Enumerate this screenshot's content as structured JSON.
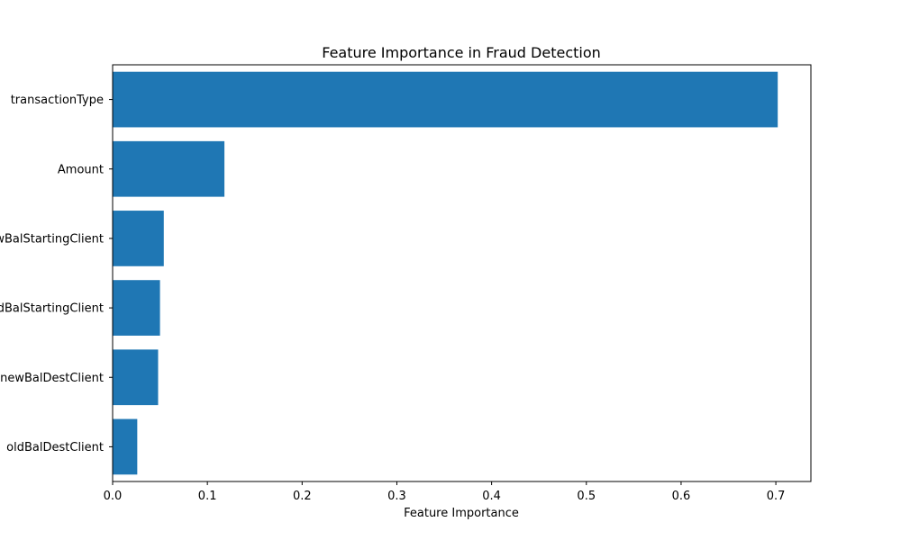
{
  "chart_data": {
    "type": "bar",
    "orientation": "horizontal",
    "title": "Feature Importance in Fraud Detection",
    "xlabel": "Feature Importance",
    "ylabel": "",
    "categories": [
      "transactionType",
      "Amount",
      "newBalStartingClient",
      "oldBalStartingClient",
      "newBalDestClient",
      "oldBalDestClient"
    ],
    "values": [
      0.702,
      0.118,
      0.054,
      0.05,
      0.048,
      0.026
    ],
    "xlim": [
      0,
      0.737
    ],
    "xticks": [
      0.0,
      0.1,
      0.2,
      0.3,
      0.4,
      0.5,
      0.6,
      0.7
    ],
    "xtick_labels": [
      "0.0",
      "0.1",
      "0.2",
      "0.3",
      "0.4",
      "0.5",
      "0.6",
      "0.7"
    ],
    "bar_color": "#1f77b4",
    "grid": false,
    "legend": "none"
  }
}
